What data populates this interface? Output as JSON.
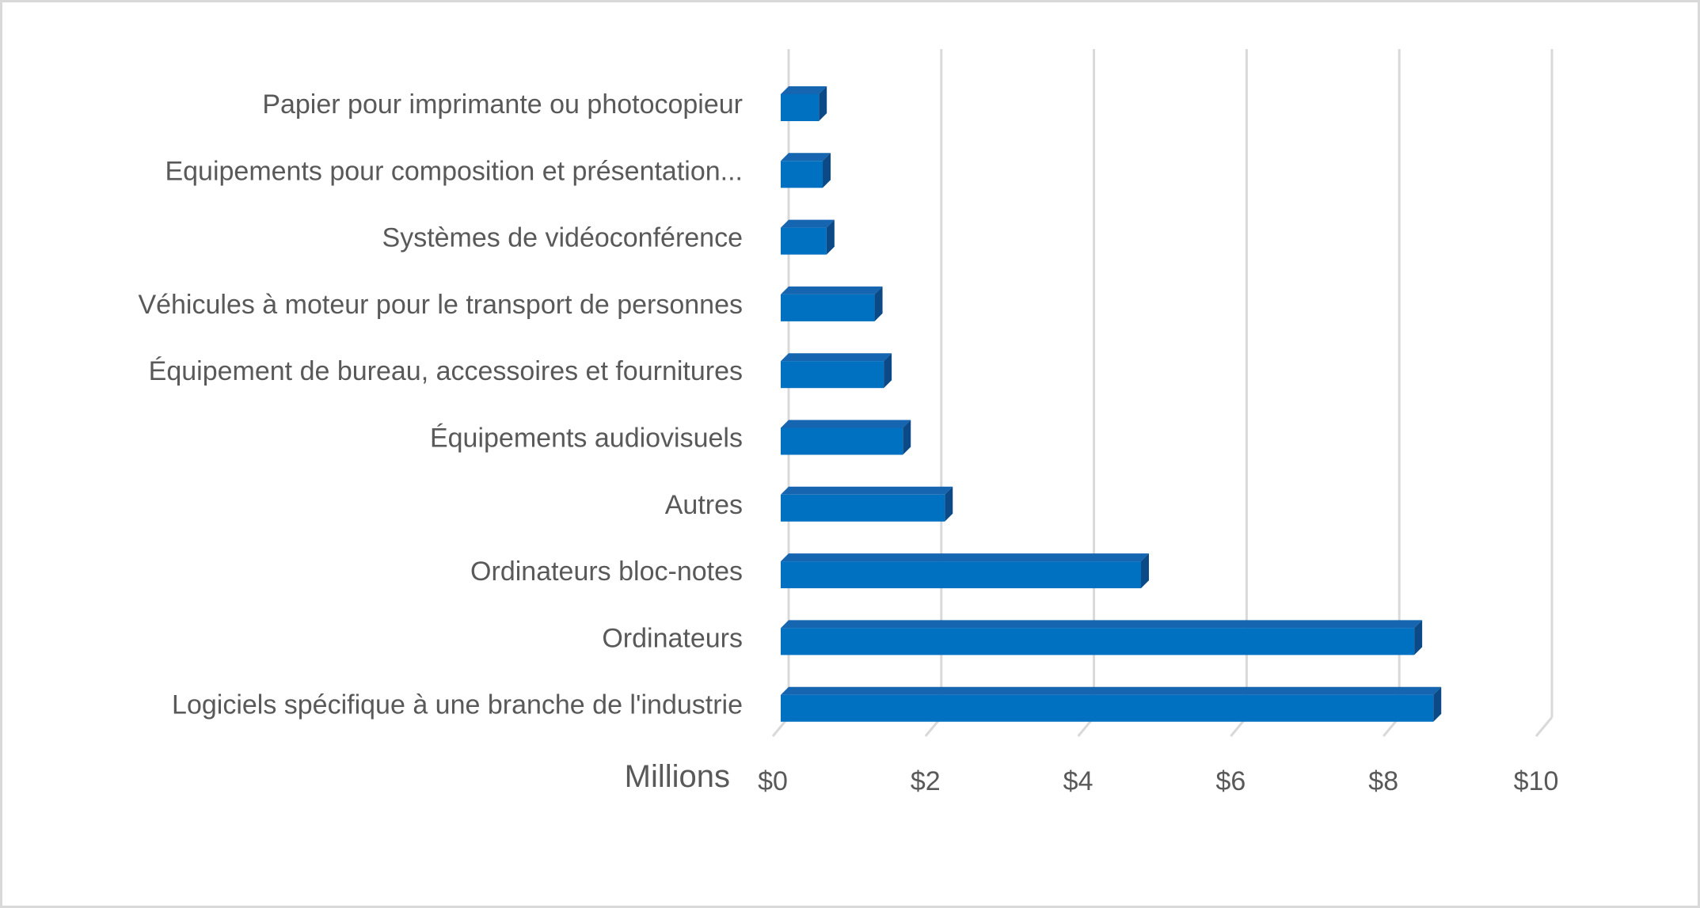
{
  "chart_data": {
    "type": "bar",
    "orientation": "horizontal",
    "style": "3d",
    "title": "",
    "xlabel": "",
    "ylabel": "",
    "display_units": "Millions",
    "categories": [
      "Logiciels spécifique à une branche de l'industrie",
      "Ordinateurs",
      "Ordinateurs bloc-notes",
      "Autres",
      "Équipements audiovisuels",
      "Équipement de bureau, accessoires et fournitures",
      "Véhicules à moteur pour le transport de personnes",
      "Systèmes de vidéoconférence",
      "Equipements pour composition et présentation...",
      "Papier pour imprimante ou photocopieur"
    ],
    "values": [
      8.55,
      8.3,
      4.72,
      2.15,
      1.6,
      1.35,
      1.23,
      0.6,
      0.55,
      0.5
    ],
    "xlim": [
      0,
      10
    ],
    "ticks": [
      0,
      2,
      4,
      6,
      8,
      10
    ],
    "tick_labels": [
      "$0",
      "$2",
      "$4",
      "$6",
      "$8",
      "$10"
    ],
    "grid": true,
    "legend": "none",
    "colors": {
      "bar_front": "#0070c0",
      "bar_top": "#1565b0",
      "bar_side": "#0b4a86",
      "gridline": "#d9d9d9",
      "text": "#595959"
    }
  }
}
